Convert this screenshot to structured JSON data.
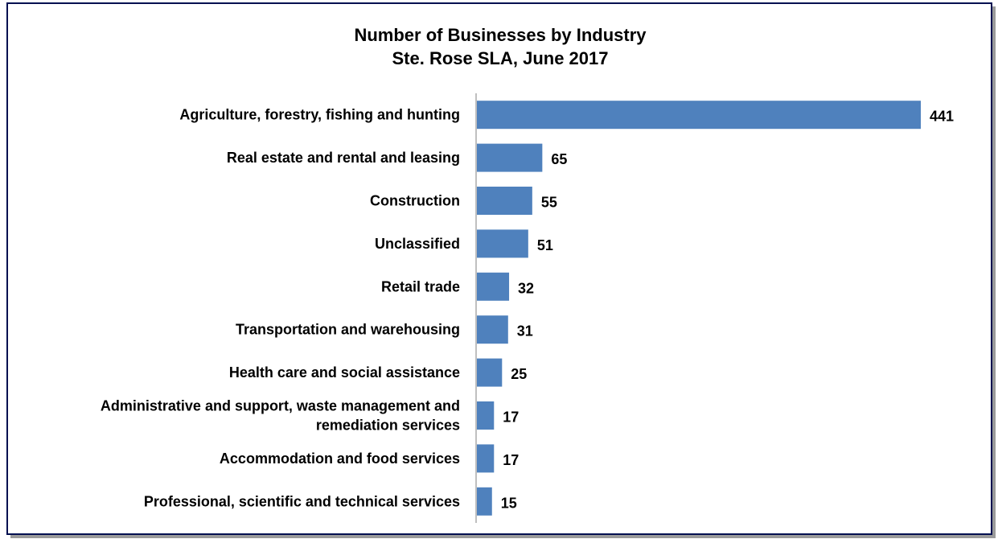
{
  "chart_data": {
    "type": "bar",
    "orientation": "horizontal",
    "title": "Number of Businesses by Industry",
    "subtitle": "Ste. Rose SLA, June 2017",
    "categories": [
      [
        "Agriculture, forestry, fishing and hunting"
      ],
      [
        "Real estate and rental and leasing"
      ],
      [
        "Construction"
      ],
      [
        "Unclassified"
      ],
      [
        "Retail trade"
      ],
      [
        "Transportation and warehousing"
      ],
      [
        "Health care and social assistance"
      ],
      [
        "Administrative and support, waste management and",
        "remediation services"
      ],
      [
        "Accommodation and food services"
      ],
      [
        "Professional, scientific and technical services"
      ]
    ],
    "values": [
      441,
      65,
      55,
      51,
      32,
      31,
      25,
      17,
      17,
      15
    ],
    "xlim": [
      0,
      441
    ],
    "grid": false,
    "data_labels": true,
    "legend": "none",
    "bar_color": "#4f81bd"
  }
}
